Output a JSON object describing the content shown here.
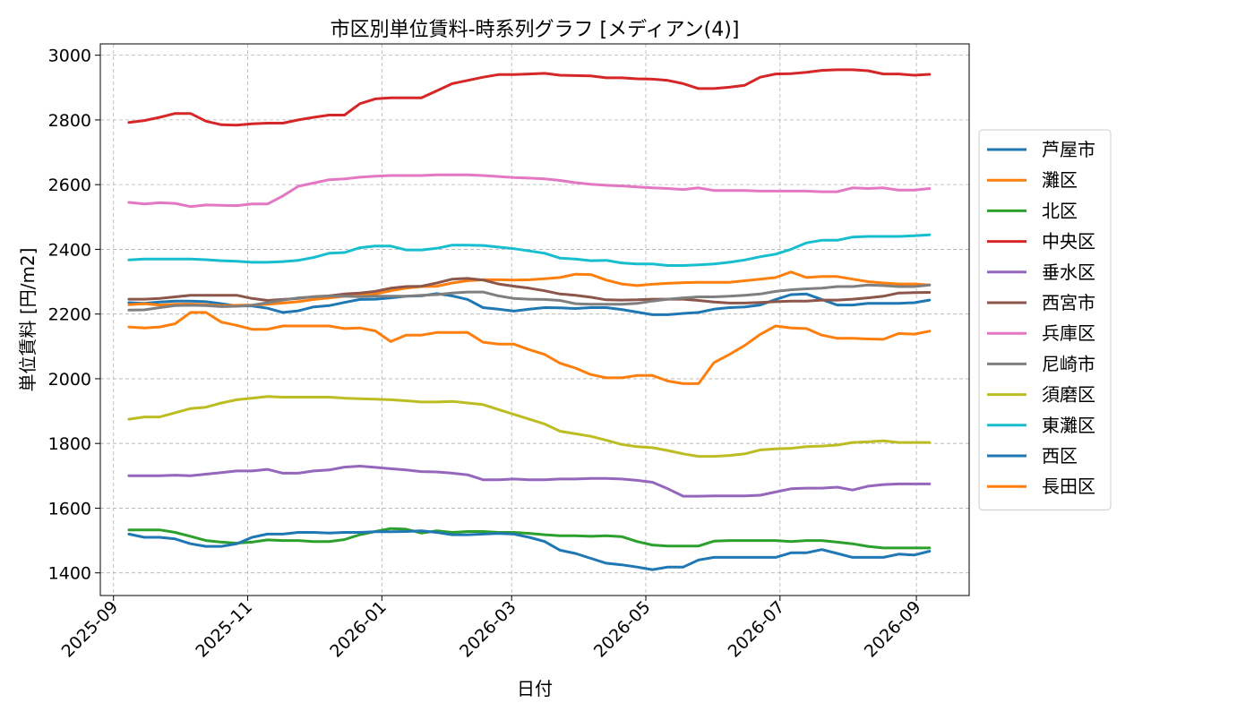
{
  "chart_data": {
    "type": "line",
    "title": "市区別単位賃料-時系列グラフ [メディアン(4)]",
    "xlabel": "日付",
    "ylabel": "単位賃料 [円/m2]",
    "xlim": [
      "2025-08-26",
      "2026-09-25"
    ],
    "ylim": [
      1330,
      3035
    ],
    "grid": true,
    "legend_position": "right",
    "x_ticks": [
      "2025-09",
      "2025-11",
      "2026-01",
      "2026-03",
      "2026-05",
      "2026-07",
      "2026-09"
    ],
    "y_ticks": [
      1400,
      1600,
      1800,
      2000,
      2200,
      2400,
      2600,
      2800,
      3000
    ],
    "x": [
      "2025-09-08",
      "2025-09-15",
      "2025-09-22",
      "2025-09-29",
      "2025-10-06",
      "2025-10-13",
      "2025-10-20",
      "2025-10-27",
      "2025-11-03",
      "2025-11-10",
      "2025-11-17",
      "2025-11-24",
      "2025-12-01",
      "2025-12-08",
      "2025-12-15",
      "2025-12-22",
      "2025-12-29",
      "2026-01-05",
      "2026-01-12",
      "2026-01-19",
      "2026-01-26",
      "2026-02-02",
      "2026-02-09",
      "2026-02-16",
      "2026-02-23",
      "2026-03-02",
      "2026-03-09",
      "2026-03-16",
      "2026-03-23",
      "2026-03-30",
      "2026-04-06",
      "2026-04-13",
      "2026-04-20",
      "2026-04-27",
      "2026-05-04",
      "2026-05-11",
      "2026-05-18",
      "2026-05-25",
      "2026-06-01",
      "2026-06-08",
      "2026-06-15",
      "2026-06-22",
      "2026-06-29",
      "2026-07-06",
      "2026-07-13",
      "2026-07-20",
      "2026-07-27",
      "2026-08-03",
      "2026-08-10",
      "2026-08-17",
      "2026-08-24",
      "2026-08-31",
      "2026-09-07"
    ],
    "series": [
      {
        "name": "芦屋市",
        "color": "#1f77b4",
        "values": [
          2235,
          2233,
          2237,
          2240,
          2240,
          2238,
          2232,
          2225,
          2225,
          2218,
          2205,
          2210,
          2222,
          2226,
          2236,
          2245,
          2246,
          2250,
          2255,
          2256,
          2263,
          2256,
          2245,
          2220,
          2215,
          2209,
          2215,
          2220,
          2219,
          2217,
          2220,
          2220,
          2214,
          2206,
          2198,
          2198,
          2202,
          2205,
          2215,
          2220,
          2222,
          2228,
          2245,
          2260,
          2262,
          2245,
          2228,
          2228,
          2233,
          2233,
          2233,
          2235,
          2243
        ]
      },
      {
        "name": "灘区",
        "color": "#ff7f0e",
        "values": [
          2229,
          2232,
          2228,
          2230,
          2231,
          2229,
          2226,
          2227,
          2228,
          2230,
          2234,
          2238,
          2245,
          2250,
          2255,
          2258,
          2262,
          2272,
          2280,
          2285,
          2286,
          2296,
          2303,
          2306,
          2306,
          2305,
          2306,
          2309,
          2313,
          2323,
          2322,
          2305,
          2293,
          2288,
          2292,
          2295,
          2297,
          2298,
          2298,
          2298,
          2303,
          2308,
          2313,
          2330,
          2313,
          2316,
          2316,
          2308,
          2300,
          2296,
          2293,
          2293,
          2290
        ]
      },
      {
        "name": "北区",
        "color": "#2ca02c",
        "values": [
          1533,
          1533,
          1533,
          1525,
          1513,
          1500,
          1495,
          1492,
          1495,
          1502,
          1500,
          1500,
          1497,
          1497,
          1503,
          1518,
          1528,
          1537,
          1535,
          1523,
          1530,
          1525,
          1528,
          1528,
          1525,
          1525,
          1522,
          1518,
          1515,
          1515,
          1513,
          1515,
          1512,
          1497,
          1486,
          1483,
          1483,
          1483,
          1498,
          1500,
          1500,
          1500,
          1500,
          1497,
          1500,
          1500,
          1495,
          1490,
          1482,
          1477,
          1477,
          1477,
          1477
        ]
      },
      {
        "name": "中央区",
        "color": "#d62728",
        "values": [
          2792,
          2798,
          2808,
          2820,
          2820,
          2796,
          2785,
          2784,
          2788,
          2790,
          2790,
          2800,
          2808,
          2815,
          2815,
          2850,
          2865,
          2868,
          2868,
          2868,
          2890,
          2912,
          2922,
          2932,
          2940,
          2940,
          2942,
          2944,
          2938,
          2937,
          2936,
          2930,
          2930,
          2927,
          2926,
          2922,
          2912,
          2897,
          2897,
          2901,
          2907,
          2932,
          2942,
          2943,
          2947,
          2953,
          2955,
          2955,
          2952,
          2942,
          2942,
          2938,
          2941
        ]
      },
      {
        "name": "垂水区",
        "color": "#9467bd",
        "values": [
          1700,
          1700,
          1700,
          1702,
          1700,
          1705,
          1710,
          1715,
          1715,
          1720,
          1708,
          1708,
          1715,
          1718,
          1727,
          1730,
          1726,
          1722,
          1718,
          1713,
          1712,
          1708,
          1703,
          1688,
          1688,
          1690,
          1688,
          1688,
          1690,
          1690,
          1692,
          1692,
          1690,
          1686,
          1680,
          1660,
          1637,
          1637,
          1638,
          1638,
          1638,
          1640,
          1650,
          1660,
          1662,
          1662,
          1665,
          1656,
          1668,
          1673,
          1675,
          1675,
          1675
        ]
      },
      {
        "name": "西宮市",
        "color": "#8c564b",
        "values": [
          2246,
          2246,
          2248,
          2253,
          2258,
          2258,
          2258,
          2258,
          2248,
          2242,
          2245,
          2248,
          2254,
          2256,
          2262,
          2265,
          2270,
          2280,
          2285,
          2286,
          2296,
          2308,
          2310,
          2305,
          2293,
          2286,
          2280,
          2272,
          2262,
          2258,
          2252,
          2244,
          2243,
          2244,
          2246,
          2246,
          2246,
          2242,
          2237,
          2234,
          2234,
          2236,
          2238,
          2240,
          2240,
          2243,
          2243,
          2246,
          2250,
          2255,
          2265,
          2266,
          2267
        ]
      },
      {
        "name": "兵庫区",
        "color": "#e377c2",
        "values": [
          2545,
          2540,
          2544,
          2542,
          2532,
          2537,
          2536,
          2535,
          2540,
          2540,
          2565,
          2595,
          2605,
          2615,
          2618,
          2623,
          2626,
          2628,
          2628,
          2628,
          2630,
          2630,
          2630,
          2628,
          2625,
          2622,
          2620,
          2618,
          2613,
          2606,
          2601,
          2598,
          2596,
          2593,
          2590,
          2588,
          2585,
          2590,
          2582,
          2582,
          2582,
          2580,
          2580,
          2580,
          2580,
          2578,
          2578,
          2590,
          2588,
          2590,
          2583,
          2583,
          2588
        ]
      },
      {
        "name": "尼崎市",
        "color": "#7f7f7f",
        "values": [
          2212,
          2213,
          2220,
          2226,
          2227,
          2226,
          2223,
          2224,
          2227,
          2235,
          2243,
          2250,
          2253,
          2255,
          2255,
          2254,
          2255,
          2255,
          2255,
          2258,
          2260,
          2265,
          2268,
          2268,
          2256,
          2248,
          2246,
          2245,
          2242,
          2232,
          2230,
          2230,
          2230,
          2233,
          2240,
          2246,
          2250,
          2253,
          2253,
          2255,
          2258,
          2262,
          2270,
          2275,
          2278,
          2280,
          2285,
          2285,
          2290,
          2288,
          2285,
          2285,
          2290
        ]
      },
      {
        "name": "須磨区",
        "color": "#bcbd22",
        "values": [
          1875,
          1882,
          1882,
          1895,
          1908,
          1912,
          1925,
          1935,
          1940,
          1945,
          1943,
          1943,
          1943,
          1943,
          1940,
          1938,
          1937,
          1935,
          1932,
          1928,
          1928,
          1930,
          1925,
          1920,
          1905,
          1890,
          1875,
          1860,
          1838,
          1830,
          1822,
          1810,
          1797,
          1790,
          1787,
          1778,
          1768,
          1760,
          1760,
          1763,
          1768,
          1780,
          1783,
          1785,
          1790,
          1792,
          1795,
          1803,
          1805,
          1808,
          1803,
          1803,
          1803
        ]
      },
      {
        "name": "東灘区",
        "color": "#17becf",
        "values": [
          2367,
          2370,
          2370,
          2370,
          2370,
          2368,
          2365,
          2363,
          2360,
          2360,
          2362,
          2366,
          2375,
          2388,
          2390,
          2405,
          2410,
          2410,
          2398,
          2398,
          2403,
          2413,
          2413,
          2412,
          2407,
          2402,
          2395,
          2388,
          2373,
          2370,
          2365,
          2366,
          2358,
          2355,
          2355,
          2350,
          2350,
          2352,
          2355,
          2360,
          2367,
          2377,
          2385,
          2400,
          2420,
          2428,
          2428,
          2438,
          2440,
          2440,
          2440,
          2442,
          2445
        ]
      },
      {
        "name": "西区",
        "color": "#1f77b4",
        "values": [
          1520,
          1510,
          1510,
          1505,
          1490,
          1482,
          1482,
          1490,
          1510,
          1520,
          1520,
          1525,
          1525,
          1523,
          1525,
          1525,
          1527,
          1527,
          1528,
          1530,
          1525,
          1518,
          1518,
          1520,
          1522,
          1520,
          1510,
          1497,
          1470,
          1460,
          1445,
          1430,
          1425,
          1418,
          1410,
          1418,
          1418,
          1440,
          1448,
          1448,
          1448,
          1448,
          1448,
          1462,
          1462,
          1472,
          1460,
          1448,
          1448,
          1448,
          1458,
          1455,
          1467
        ]
      },
      {
        "name": "長田区",
        "color": "#ff7f0e",
        "values": [
          2160,
          2157,
          2160,
          2170,
          2205,
          2205,
          2175,
          2165,
          2153,
          2153,
          2163,
          2163,
          2163,
          2163,
          2155,
          2157,
          2148,
          2115,
          2135,
          2135,
          2143,
          2143,
          2143,
          2113,
          2107,
          2107,
          2090,
          2075,
          2048,
          2033,
          2013,
          2003,
          2003,
          2010,
          2010,
          1993,
          1985,
          1985,
          2050,
          2075,
          2103,
          2137,
          2163,
          2157,
          2155,
          2135,
          2125,
          2125,
          2123,
          2122,
          2140,
          2138,
          2147
        ]
      }
    ]
  }
}
